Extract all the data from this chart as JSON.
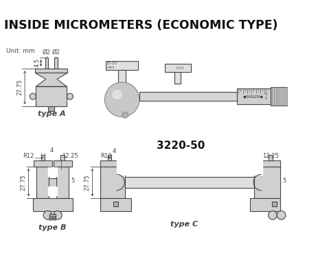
{
  "title": "INSIDE MICROMETERS (ECONOMIC TYPE)",
  "title_fontsize": 12.5,
  "bg_color": "#ffffff",
  "line_color": "#444444",
  "fill_color": "#d0d0d0",
  "fill_light": "#e0e0e0",
  "fill_dark": "#b0b0b0",
  "unit_label": "Unit: mm",
  "type_a_label": "type A",
  "type_b_label": "type B",
  "type_c_label": "type C",
  "model_label": "3220-50",
  "ann_fs": 6.0,
  "label_fs": 8.0
}
